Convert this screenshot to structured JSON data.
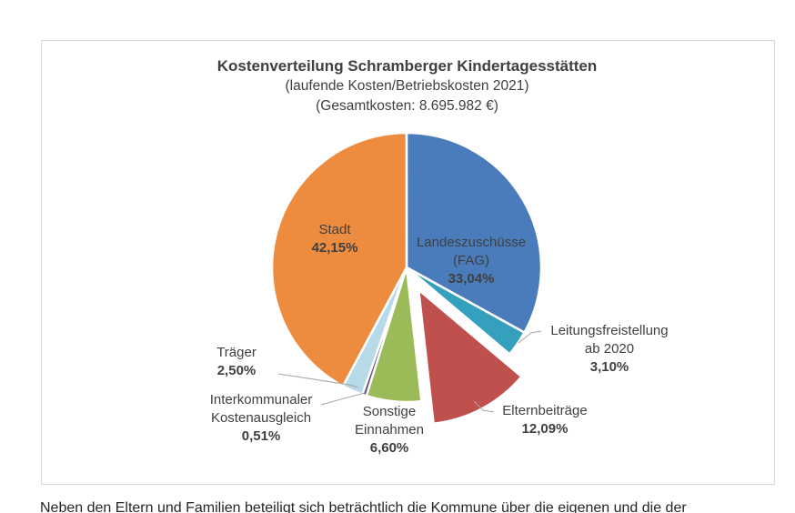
{
  "chart_data": {
    "type": "pie",
    "title": "Kostenverteilung Schramberger Kindertagesstätten",
    "subtitle1": "(laufende Kosten/Betriebskosten 2021)",
    "subtitle2": "(Gesamtkosten: 8.695.982 €)",
    "total_label": "Gesamtkosten: 8.695.982 €",
    "start_angle_deg": 0,
    "direction": "clockwise",
    "legend_position": "none",
    "slices": [
      {
        "label": "Landeszuschüsse (FAG)",
        "label_lines": [
          "Landeszuschüsse",
          "(FAG)"
        ],
        "value_pct": 33.04,
        "value_label": "33,04%",
        "color": "#4A7CBB",
        "exploded": false
      },
      {
        "label": "Leitungsfreistellung ab 2020",
        "label_lines": [
          "Leitungsfreistellung",
          "ab 2020"
        ],
        "value_pct": 3.1,
        "value_label": "3,10%",
        "color": "#35A0BE",
        "exploded": false
      },
      {
        "label": "Elternbeiträge",
        "label_lines": [
          "Elternbeiträge"
        ],
        "value_pct": 12.09,
        "value_label": "12,09%",
        "color": "#C0504D",
        "exploded": true
      },
      {
        "label": "Sonstige Einnahmen",
        "label_lines": [
          "Sonstige",
          "Einnahmen"
        ],
        "value_pct": 6.6,
        "value_label": "6,60%",
        "color": "#9BBB59",
        "exploded": false
      },
      {
        "label": "Interkommunaler Kostenausgleich",
        "label_lines": [
          "Interkommunaler",
          "Kostenausgleich"
        ],
        "value_pct": 0.51,
        "value_label": "0,51%",
        "color": "#604A7B",
        "exploded": false
      },
      {
        "label": "Träger",
        "label_lines": [
          "Träger"
        ],
        "value_pct": 2.5,
        "value_label": "2,50%",
        "color": "#B7DAE8",
        "exploded": false
      },
      {
        "label": "Stadt",
        "label_lines": [
          "Stadt"
        ],
        "value_pct": 42.15,
        "value_label": "42,15%",
        "color": "#ED8B3E",
        "exploded": false
      }
    ]
  },
  "footer": {
    "fragment": "Neben den Eltern und Familien beteiligt sich beträchtlich die Kommune über die eigenen und die der"
  }
}
